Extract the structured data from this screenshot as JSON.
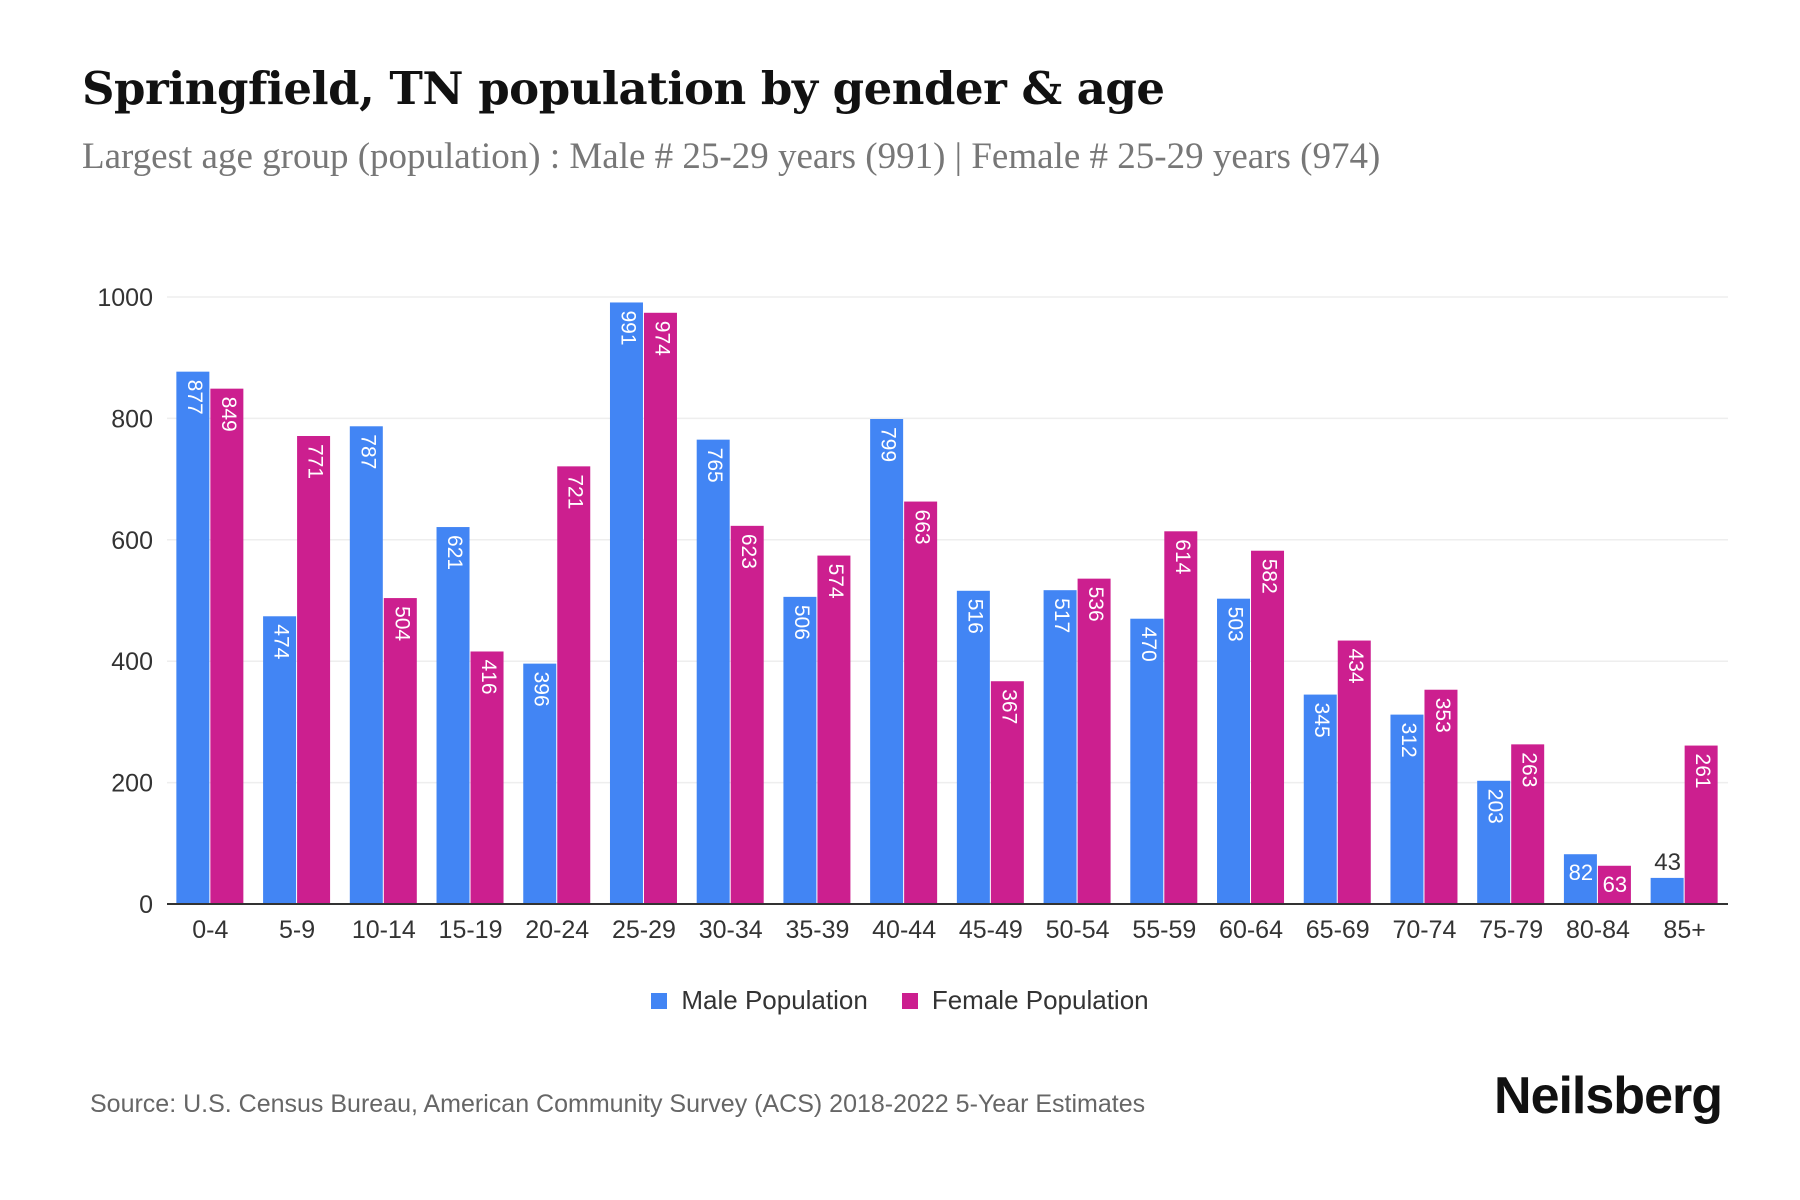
{
  "header": {
    "title": "Springfield, TN population by gender & age",
    "subtitle": "Largest age group (population) : Male # 25-29 years (991) | Female # 25-29 years (974)"
  },
  "chart_data": {
    "type": "bar",
    "title": "Springfield, TN population by gender & age",
    "xlabel": "",
    "ylabel": "",
    "ylim": [
      0,
      1000
    ],
    "yticks": [
      0,
      200,
      400,
      600,
      800,
      1000
    ],
    "grid": true,
    "legend_position": "bottom-center",
    "categories": [
      "0-4",
      "5-9",
      "10-14",
      "15-19",
      "20-24",
      "25-29",
      "30-34",
      "35-39",
      "40-44",
      "45-49",
      "50-54",
      "55-59",
      "60-64",
      "65-69",
      "70-74",
      "75-79",
      "80-84",
      "85+"
    ],
    "series": [
      {
        "name": "Male Population",
        "color": "#4285f4",
        "values": [
          877,
          474,
          787,
          621,
          396,
          991,
          765,
          506,
          799,
          516,
          517,
          470,
          503,
          345,
          312,
          203,
          82,
          43
        ]
      },
      {
        "name": "Female Population",
        "color": "#cc1f8f",
        "values": [
          849,
          771,
          504,
          416,
          721,
          974,
          623,
          574,
          663,
          367,
          536,
          614,
          582,
          434,
          353,
          263,
          63,
          261
        ]
      }
    ]
  },
  "footer": {
    "source": "Source: U.S. Census Bureau, American Community Survey (ACS) 2018-2022 5-Year Estimates",
    "logo": "Neilsberg"
  }
}
